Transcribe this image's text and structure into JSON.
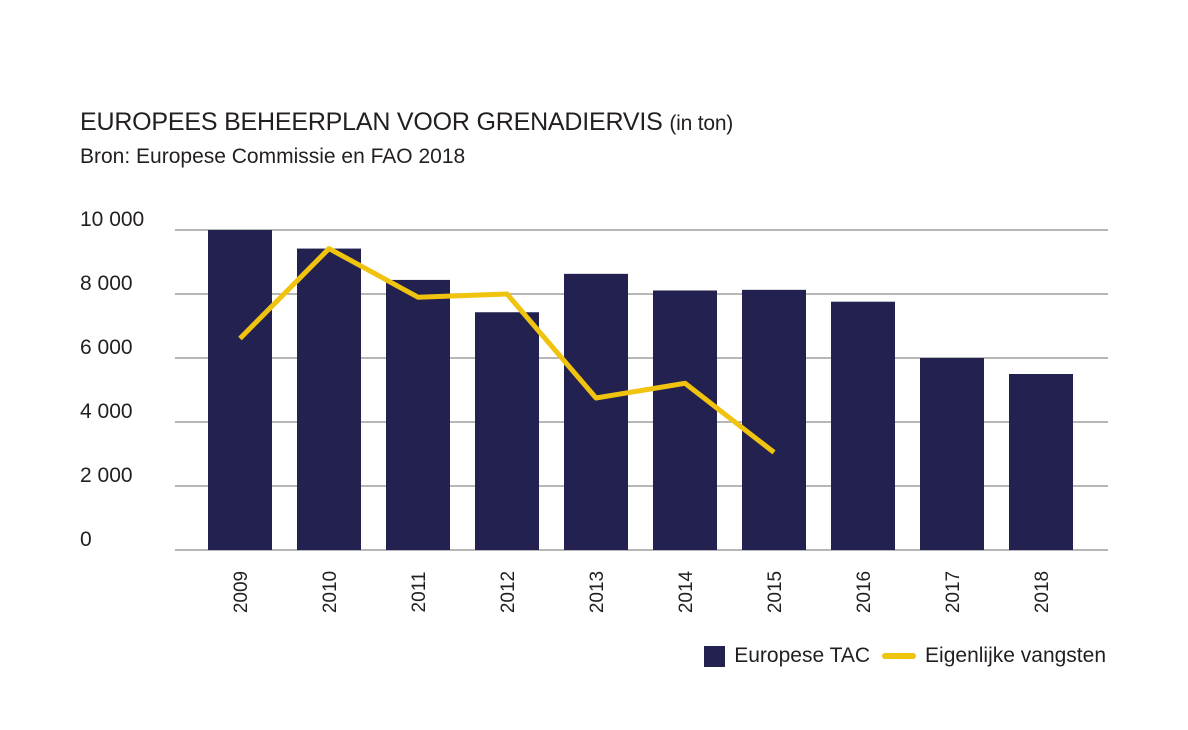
{
  "title": "EUROPEES BEHEERPLAN VOOR GRENADIERVIS",
  "title_unit": "(in ton)",
  "subtitle": "Bron: Europese Commissie en FAO 2018",
  "colors": {
    "bars": "#23214f",
    "line": "#f0c30f",
    "grid": "#8c8c8c",
    "text": "#231f20"
  },
  "legend": {
    "bar_label": "Europese TAC",
    "line_label": "Eigenlijke vangsten"
  },
  "chart_data": {
    "type": "bar",
    "categories": [
      "2009",
      "2010",
      "2011",
      "2012",
      "2013",
      "2014",
      "2015",
      "2016",
      "2017",
      "2018"
    ],
    "series": [
      {
        "name": "Europese TAC",
        "type": "bar",
        "values": [
          10000,
          9420,
          8440,
          7430,
          8630,
          8110,
          8130,
          7760,
          6000,
          5500
        ]
      },
      {
        "name": "Eigenlijke vangsten",
        "type": "line",
        "values": [
          6610,
          9420,
          7900,
          8000,
          4750,
          5210,
          3050,
          null,
          null,
          null
        ]
      }
    ],
    "ylim": [
      0,
      10000
    ],
    "yticks": [
      0,
      2000,
      4000,
      6000,
      8000,
      10000
    ],
    "ytick_labels": [
      "0",
      "2 000",
      "4 000",
      "6 000",
      "8 000",
      "10 000"
    ],
    "grid": true,
    "legend_position": "bottom-right"
  }
}
